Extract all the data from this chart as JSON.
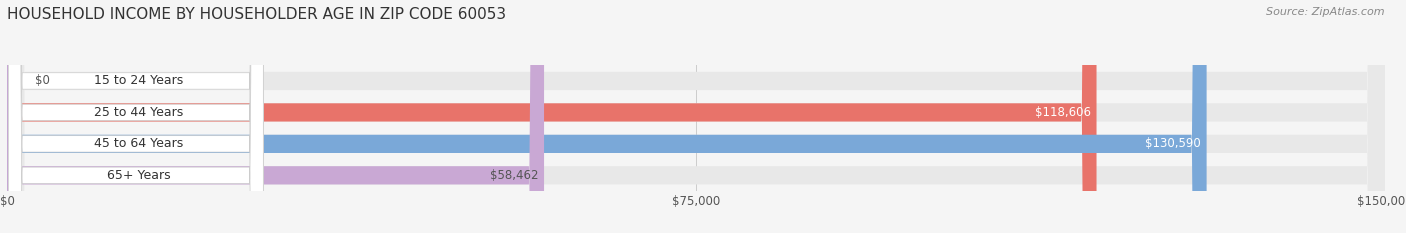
{
  "title": "HOUSEHOLD INCOME BY HOUSEHOLDER AGE IN ZIP CODE 60053",
  "source": "Source: ZipAtlas.com",
  "categories": [
    "15 to 24 Years",
    "25 to 44 Years",
    "45 to 64 Years",
    "65+ Years"
  ],
  "values": [
    0,
    118606,
    130590,
    58462
  ],
  "bar_colors": [
    "#f5c897",
    "#e8736a",
    "#7aa8d8",
    "#c9a8d4"
  ],
  "label_colors": [
    "#555555",
    "#ffffff",
    "#ffffff",
    "#555555"
  ],
  "value_labels": [
    "$0",
    "$118,606",
    "$130,590",
    "$58,462"
  ],
  "xlim": [
    0,
    150000
  ],
  "xticks": [
    0,
    75000,
    150000
  ],
  "xticklabels": [
    "$0",
    "$75,000",
    "$150,000"
  ],
  "bg_color": "#f5f5f5",
  "bar_bg_color": "#e8e8e8",
  "bar_height": 0.58,
  "title_fontsize": 11,
  "label_fontsize": 9,
  "value_fontsize": 8.5,
  "source_fontsize": 8,
  "tick_fontsize": 8.5
}
